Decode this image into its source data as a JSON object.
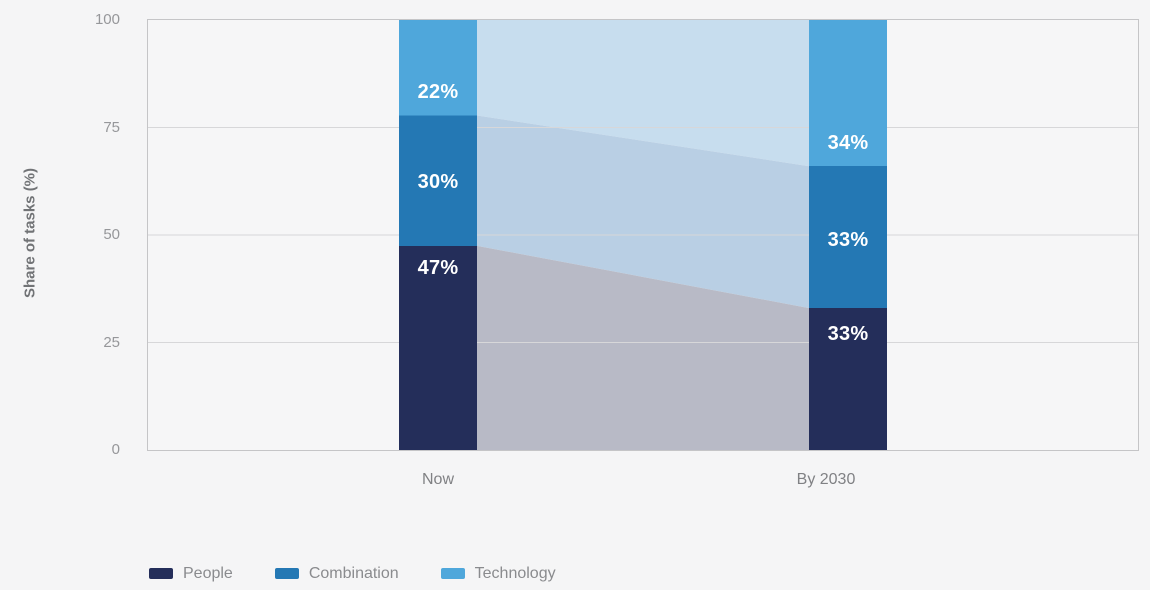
{
  "chart_data": {
    "type": "bar",
    "variant": "stacked-columns-with-connecting-bands",
    "categories": [
      "Now",
      "By 2030"
    ],
    "series": [
      {
        "name": "People",
        "color": "#242e5a",
        "band_color": "#b8bac6",
        "values": [
          47,
          33
        ]
      },
      {
        "name": "Combination",
        "color": "#2478b4",
        "band_color": "#b9cfe4",
        "values": [
          30,
          33
        ]
      },
      {
        "name": "Technology",
        "color": "#4fa7db",
        "band_color": "#c7ddee",
        "values": [
          22,
          34
        ]
      }
    ],
    "stack_order_top_to_bottom": [
      "Technology",
      "Combination",
      "People"
    ],
    "value_suffix": "%",
    "ylabel": "Share of tasks (%)",
    "ylim": [
      0,
      100
    ],
    "yticks": [
      0,
      25,
      50,
      75,
      100
    ],
    "grid": true,
    "grid_color": "#d7d7d9",
    "frame_color": "#c5c5c7",
    "legend_position": "bottom-left",
    "label_frac": {
      "Now": {
        "Technology": 0.75,
        "Combination": 0.51,
        "People": 0.11
      },
      "By 2030": {
        "Technology": 0.84,
        "Combination": 0.52,
        "People": 0.18
      }
    }
  },
  "legend": {
    "items": [
      {
        "label": "People",
        "color": "#242e5a"
      },
      {
        "label": "Combination",
        "color": "#2478b4"
      },
      {
        "label": "Technology",
        "color": "#4fa7db"
      }
    ]
  }
}
